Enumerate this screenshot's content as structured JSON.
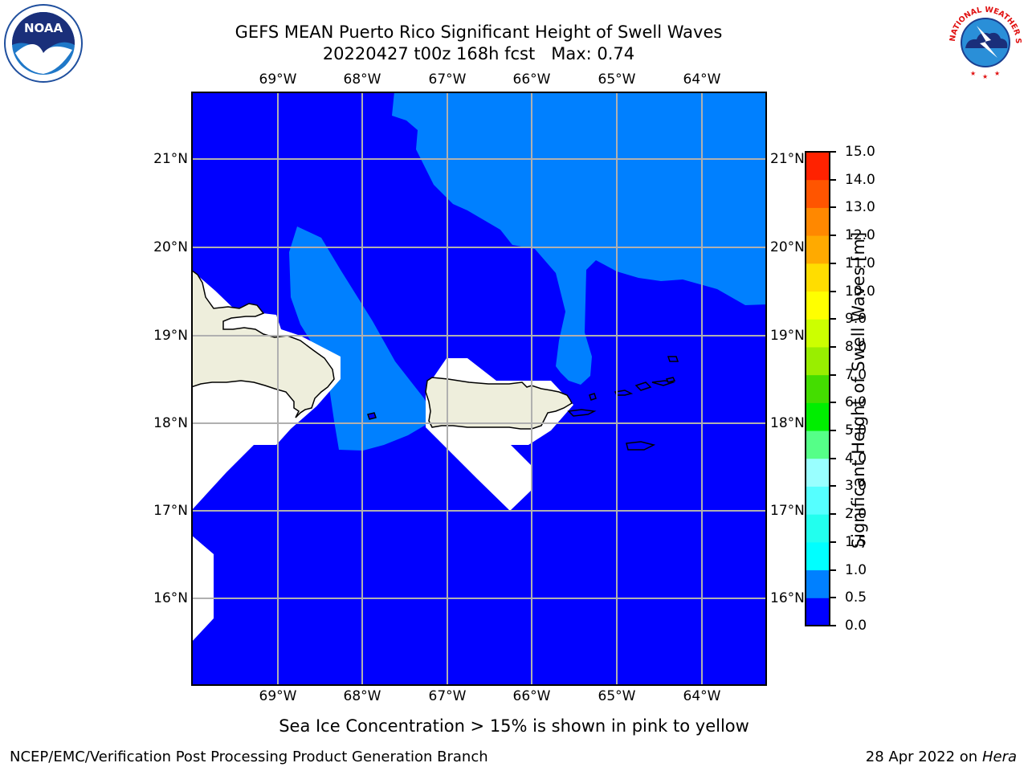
{
  "title_line1": "GEFS MEAN Puerto Rico Significant Height of Swell Waves",
  "title_line2": "20220427 t00z 168h fcst   Max: 0.74",
  "lon_labels": [
    "69°W",
    "68°W",
    "67°W",
    "66°W",
    "65°W",
    "64°W"
  ],
  "lat_labels": [
    "21°N",
    "20°N",
    "19°N",
    "18°N",
    "17°N",
    "16°N"
  ],
  "colorbar": {
    "label": "Significant Height of Swell Waves [m]",
    "ticks": [
      "0.0",
      "0.5",
      "1.0",
      "1.5",
      "2.0",
      "3.0",
      "4.0",
      "5.0",
      "6.0",
      "7.0",
      "8.0",
      "9.0",
      "10.0",
      "11.0",
      "12.0",
      "13.0",
      "14.0",
      "15.0"
    ],
    "colors": [
      "#0000ff",
      "#0080ff",
      "#00ffff",
      "#22ffee",
      "#55ffff",
      "#99ffff",
      "#55ff88",
      "#00ee00",
      "#44dd00",
      "#99ee00",
      "#ccff00",
      "#ffff00",
      "#ffdd00",
      "#ffaa00",
      "#ff8800",
      "#ff5500",
      "#ff2200",
      "#ff0000"
    ]
  },
  "map_colors": {
    "swell_low": "#0000ff",
    "swell_mid": "#0080ff",
    "land": "#eeeedc",
    "no_data": "#ffffff"
  },
  "ice_note": "Sea Ice Concentration > 15% is shown in pink to yellow",
  "footer_left": "NCEP/EMC/Verification Post Processing Product Generation Branch",
  "footer_date": "28 Apr 2022 on ",
  "footer_machine": "Hera",
  "logos": {
    "left": "NOAA",
    "right": "NATIONAL WEATHER SERVICE"
  }
}
